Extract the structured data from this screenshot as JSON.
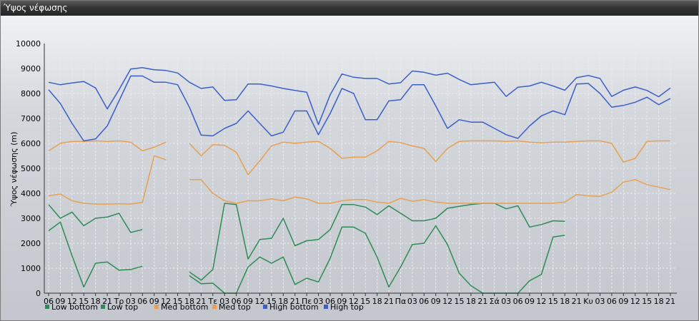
{
  "window": {
    "title": "Ύψος νέφωσης"
  },
  "chart_data": {
    "type": "line",
    "title": "",
    "ylabel": "Ύψος νέφωσης (m)",
    "xlabel": "",
    "ylim": [
      0,
      10000
    ],
    "yticks": [
      0,
      1000,
      2000,
      3000,
      4000,
      5000,
      6000,
      7000,
      8000,
      9000,
      10000
    ],
    "grid": true,
    "legend_position": "bottom-left",
    "categories": [
      "06",
      "09",
      "12",
      "15",
      "18",
      "21",
      "Τρ",
      "03",
      "06",
      "09",
      "12",
      "15",
      "18",
      "21",
      "Τε",
      "03",
      "06",
      "09",
      "12",
      "15",
      "18",
      "21",
      "Πε",
      "03",
      "06",
      "09",
      "12",
      "15",
      "18",
      "21",
      "Πα",
      "03",
      "06",
      "09",
      "12",
      "15",
      "18",
      "21",
      "Σά",
      "03",
      "06",
      "09",
      "12",
      "15",
      "18",
      "21",
      "Κυ",
      "03",
      "06",
      "09",
      "12",
      "15",
      "18",
      "21"
    ],
    "series": [
      {
        "name": "Low bottom",
        "color": "#2e8b57",
        "values": [
          2500,
          2850,
          1500,
          250,
          1200,
          1250,
          920,
          950,
          1080,
          null,
          null,
          null,
          850,
          520,
          950,
          3600,
          3550,
          1370,
          2150,
          2200,
          3000,
          1900,
          2100,
          2150,
          2550,
          3550,
          3550,
          3450,
          3150,
          3500,
          3200,
          2900,
          2900,
          3000,
          3400,
          3480,
          3550,
          3600,
          3600,
          3380,
          3500,
          2650,
          2750,
          2900,
          2880,
          null,
          null,
          null,
          null,
          null,
          null,
          null,
          null,
          null
        ]
      },
      {
        "name": "Low top",
        "color": "#2e8b57",
        "values": [
          3550,
          3000,
          3250,
          2700,
          3000,
          3050,
          3200,
          2430,
          2550,
          null,
          null,
          null,
          700,
          380,
          400,
          0,
          0,
          1050,
          1450,
          1200,
          1450,
          350,
          600,
          450,
          1400,
          2650,
          2650,
          2400,
          1450,
          250,
          1050,
          1950,
          2000,
          2700,
          1950,
          800,
          300,
          0,
          0,
          0,
          0,
          500,
          750,
          2250,
          2320,
          null,
          null,
          null,
          null,
          null,
          null,
          null,
          null,
          null
        ]
      },
      {
        "name": "Med bottom",
        "color": "#e8a050",
        "values": [
          3900,
          3970,
          3700,
          3600,
          3570,
          3570,
          3580,
          3570,
          3640,
          5500,
          5350,
          null,
          4550,
          4550,
          4000,
          3700,
          3600,
          3700,
          3700,
          3780,
          3700,
          3850,
          3780,
          3600,
          3600,
          3700,
          3750,
          3750,
          3650,
          3600,
          3800,
          3680,
          3750,
          3650,
          3600,
          3600,
          3600,
          3600,
          3600,
          3600,
          3600,
          3600,
          3600,
          3600,
          3650,
          3950,
          3900,
          3880,
          4050,
          4450,
          4550,
          4350,
          4250,
          4150
        ]
      },
      {
        "name": "Med top",
        "color": "#e8a050",
        "values": [
          5700,
          6000,
          6080,
          6080,
          6100,
          6080,
          6100,
          6050,
          5700,
          5850,
          6050,
          null,
          6000,
          5500,
          5950,
          5920,
          5650,
          4750,
          5300,
          5900,
          6050,
          6000,
          6050,
          6080,
          5800,
          5400,
          5450,
          5450,
          5700,
          6080,
          6030,
          5900,
          5800,
          5270,
          5800,
          6080,
          6100,
          6100,
          6100,
          6080,
          6100,
          6050,
          6020,
          6050,
          6050,
          6080,
          6100,
          6100,
          6000,
          5250,
          5400,
          6080,
          6100,
          6100
        ]
      },
      {
        "name": "High bottom",
        "color": "#3a5fc8",
        "values": [
          8150,
          7600,
          6800,
          6100,
          6180,
          6700,
          7700,
          8700,
          8700,
          8450,
          8450,
          8350,
          7450,
          6330,
          6300,
          6600,
          6800,
          7300,
          6800,
          6300,
          6450,
          7300,
          7300,
          6350,
          7200,
          8200,
          8000,
          6950,
          6950,
          7700,
          7750,
          8350,
          8350,
          7500,
          6600,
          6950,
          6850,
          6850,
          6600,
          6350,
          6200,
          6700,
          7100,
          7300,
          7150,
          8380,
          8400,
          8000,
          7450,
          7520,
          7650,
          7850,
          7550,
          7800
        ]
      },
      {
        "name": "High top",
        "color": "#3a5fc8",
        "values": [
          8450,
          8350,
          8420,
          8480,
          8220,
          7380,
          8150,
          8980,
          9030,
          8950,
          8920,
          8820,
          8450,
          8200,
          8260,
          7720,
          7750,
          8380,
          8380,
          8300,
          8200,
          8120,
          8050,
          6750,
          7950,
          8780,
          8650,
          8600,
          8600,
          8380,
          8430,
          8900,
          8850,
          8730,
          8810,
          8560,
          8350,
          8400,
          8450,
          7880,
          8250,
          8300,
          8450,
          8300,
          8130,
          8630,
          8720,
          8600,
          7880,
          8130,
          8260,
          8120,
          7870,
          8220
        ]
      }
    ]
  }
}
